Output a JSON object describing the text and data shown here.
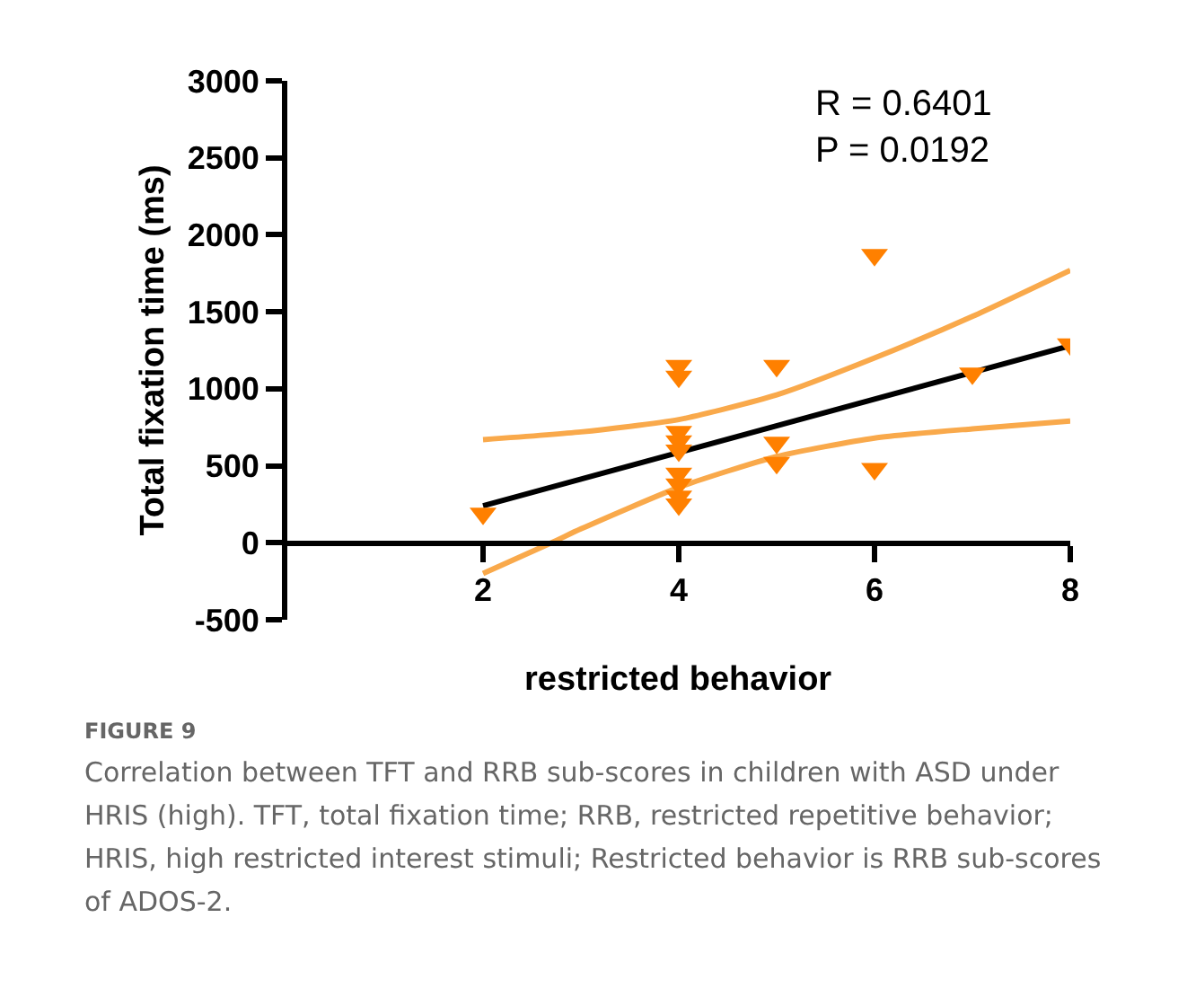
{
  "chart_data": {
    "type": "scatter",
    "xlabel": "restricted behavior",
    "ylabel": "Total fixation time (ms)",
    "xlim": [
      0,
      8
    ],
    "xticks": [
      2,
      4,
      6,
      8
    ],
    "ylim": [
      -500,
      3000
    ],
    "yticks": [
      -500,
      0,
      500,
      1000,
      1500,
      2000,
      2500,
      3000
    ],
    "grid": false,
    "marker": "triangle",
    "series": [
      {
        "color": "#ff8000",
        "x": [
          2,
          4,
          4,
          4,
          4,
          4,
          4,
          4,
          4,
          4,
          5,
          5,
          5,
          6,
          6,
          7,
          8
        ],
        "values": [
          190,
          1150,
          1080,
          720,
          660,
          600,
          450,
          380,
          300,
          250,
          1150,
          650,
          520,
          1870,
          480,
          1100,
          1290
        ]
      },
      {
        "type": "line",
        "color": "#000000",
        "marker": "none",
        "x": [
          2,
          8
        ],
        "values": [
          240,
          1280
        ]
      },
      {
        "type": "line",
        "color": "#f9a94b",
        "marker": "none",
        "x": [
          2,
          3,
          4,
          5,
          6,
          7,
          8
        ],
        "values": [
          670,
          720,
          800,
          960,
          1200,
          1470,
          1770
        ]
      },
      {
        "type": "line",
        "color": "#f9a94b",
        "marker": "none",
        "x": [
          2,
          2.7,
          3,
          4,
          5,
          6,
          7,
          8
        ],
        "values": [
          -200,
          0,
          90,
          360,
          560,
          680,
          740,
          790
        ]
      }
    ],
    "annotations": [
      "R = 0.6401",
      "P = 0.0192",
      "FIGURE 9",
      "Correlation between TFT and RRB sub-scores in children with ASD under HRIS (high). TFT, total fixation time; RRB, restricted repetitive behavior; HRIS, high restricted interest stimuli; Restricted behavior is RRB sub-scores of ADOS-2."
    ]
  }
}
